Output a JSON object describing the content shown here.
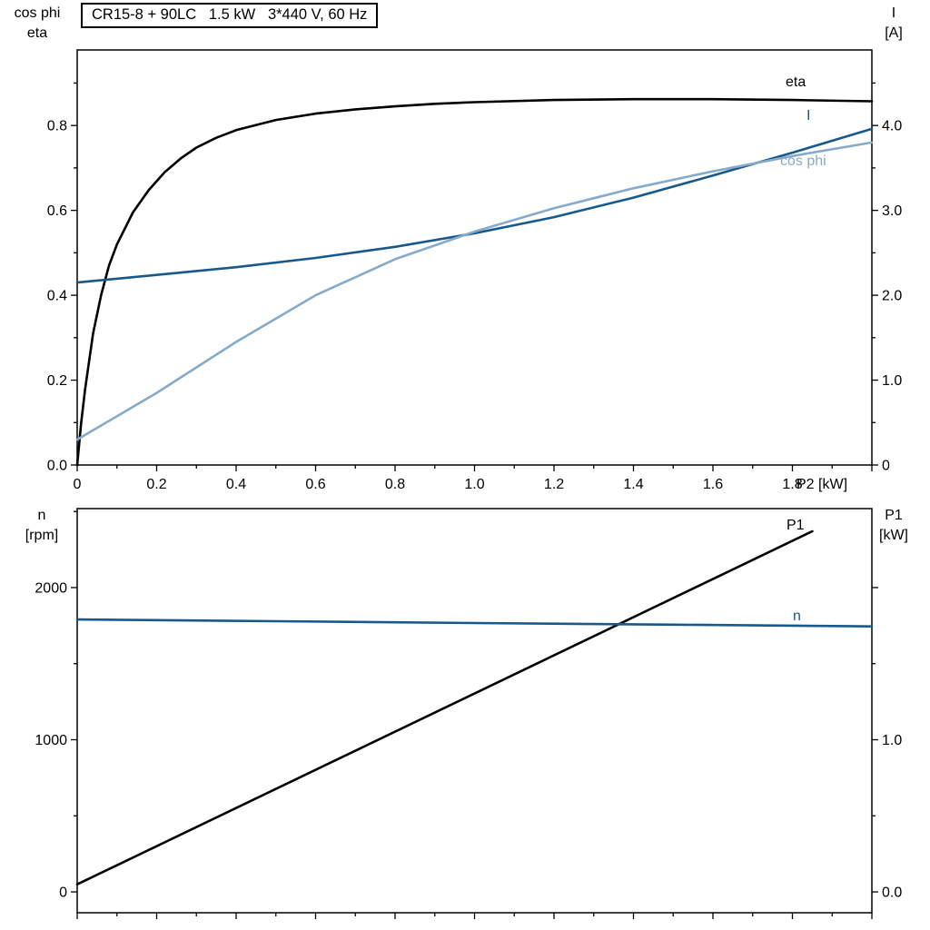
{
  "colors": {
    "background": "#ffffff",
    "frame": "#000000",
    "text": "#000000",
    "curve_black": "#000000",
    "curve_dark_blue": "#17598c",
    "curve_light_blue": "#86aac8"
  },
  "chart_data": [
    {
      "type": "line",
      "title": "CR15-8 + 90LC   1.5 kW   3*440 V, 60 Hz",
      "grid": false,
      "legend": "curve-end labels",
      "x": {
        "title": "P2 [kW]",
        "min": 0,
        "max": 2.0,
        "ticks": [
          0,
          0.2,
          0.4,
          0.6,
          0.8,
          1.0,
          1.2,
          1.4,
          1.6,
          1.8,
          2.0
        ],
        "tick_labels": [
          "0",
          "0.2",
          "0.4",
          "0.6",
          "0.8",
          "1.0",
          "1.2",
          "1.4",
          "1.6",
          "1.8",
          ""
        ],
        "minor_ticks": [
          0.1,
          0.3,
          0.5,
          0.7,
          0.9,
          1.1,
          1.3,
          1.5,
          1.7,
          1.9
        ]
      },
      "y_left": {
        "title_lines": [
          "cos phi",
          "eta"
        ],
        "min": 0,
        "max": 0.978,
        "ticks": [
          0,
          0.2,
          0.4,
          0.6,
          0.8
        ],
        "tick_labels": [
          "0.0",
          "0.2",
          "0.4",
          "0.6",
          "0.8"
        ],
        "minor_ticks": [
          0.1,
          0.3,
          0.5,
          0.7,
          0.9
        ]
      },
      "y_right": {
        "title_lines": [
          "I",
          "[A]"
        ],
        "min": 0,
        "max": 4.89,
        "ticks": [
          0,
          1.0,
          2.0,
          3.0,
          4.0
        ],
        "tick_labels": [
          "0",
          "1.0",
          "2.0",
          "3.0",
          "4.0"
        ],
        "minor_ticks": [
          0.5,
          1.5,
          2.5,
          3.5,
          4.5
        ]
      },
      "series": [
        {
          "name": "eta",
          "axis": "left",
          "color": "#000000",
          "x": [
            0,
            0.01,
            0.02,
            0.04,
            0.06,
            0.08,
            0.1,
            0.14,
            0.18,
            0.22,
            0.26,
            0.3,
            0.35,
            0.4,
            0.5,
            0.6,
            0.7,
            0.8,
            0.9,
            1.0,
            1.2,
            1.4,
            1.6,
            1.8,
            2.0
          ],
          "y": [
            0,
            0.1,
            0.18,
            0.31,
            0.4,
            0.47,
            0.52,
            0.595,
            0.648,
            0.69,
            0.722,
            0.748,
            0.771,
            0.789,
            0.813,
            0.828,
            0.838,
            0.845,
            0.851,
            0.855,
            0.86,
            0.862,
            0.862,
            0.86,
            0.857
          ]
        },
        {
          "name": "I",
          "axis": "right",
          "color": "#17598c",
          "x": [
            0,
            0.2,
            0.4,
            0.6,
            0.8,
            1.0,
            1.2,
            1.4,
            1.6,
            1.8,
            2.0
          ],
          "y": [
            2.15,
            2.24,
            2.33,
            2.44,
            2.57,
            2.73,
            2.92,
            3.15,
            3.41,
            3.68,
            3.96
          ]
        },
        {
          "name": "cos phi",
          "axis": "left",
          "color": "#86aac8",
          "x": [
            0,
            0.2,
            0.4,
            0.6,
            0.8,
            1.0,
            1.2,
            1.4,
            1.6,
            1.8,
            2.0
          ],
          "y": [
            0.06,
            0.17,
            0.29,
            0.4,
            0.485,
            0.55,
            0.605,
            0.652,
            0.692,
            0.728,
            0.76
          ]
        }
      ]
    },
    {
      "type": "line",
      "title": "",
      "grid": false,
      "legend": "curve-end labels",
      "x": {
        "title": "",
        "min": 0,
        "max": 2.0,
        "ticks": [
          0,
          0.2,
          0.4,
          0.6,
          0.8,
          1.0,
          1.2,
          1.4,
          1.6,
          1.8,
          2.0
        ],
        "tick_labels": [],
        "minor_ticks": [
          0.1,
          0.3,
          0.5,
          0.7,
          0.9,
          1.1,
          1.3,
          1.5,
          1.7,
          1.9
        ]
      },
      "y_left": {
        "title_lines": [
          "n",
          "[rpm]"
        ],
        "min": -137,
        "max": 2519,
        "ticks": [
          0,
          1000,
          2000
        ],
        "tick_labels": [
          "0",
          "1000",
          "2000"
        ],
        "minor_ticks": [
          500,
          1500,
          2500
        ]
      },
      "y_right": {
        "title_lines": [
          "P1",
          "[kW]"
        ],
        "min": -0.137,
        "max": 2.519,
        "ticks": [
          0,
          1.0,
          2.0
        ],
        "tick_labels": [
          "0.0",
          "1.0",
          ""
        ],
        "minor_ticks": [
          0.5,
          1.5
        ]
      },
      "series": [
        {
          "name": "P1",
          "axis": "right",
          "color": "#000000",
          "x": [
            0,
            1.85
          ],
          "y": [
            0.05,
            2.37
          ]
        },
        {
          "name": "n",
          "axis": "left",
          "color": "#17598c",
          "x": [
            0,
            0.5,
            1.0,
            1.5,
            2.0
          ],
          "y": [
            1790,
            1779,
            1767,
            1756,
            1745
          ]
        }
      ]
    }
  ]
}
